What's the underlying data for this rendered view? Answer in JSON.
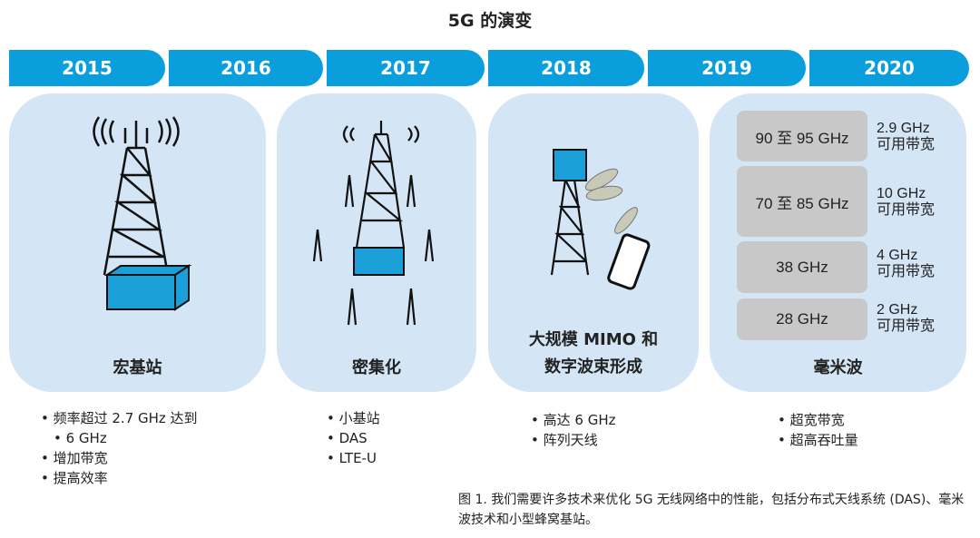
{
  "title": "5G 的演变",
  "years": [
    "2015",
    "2016",
    "2017",
    "2018",
    "2019",
    "2020"
  ],
  "cards": [
    {
      "label": "宏基站",
      "bullets": [
        "频率超过 2.7 GHz 达到",
        "6 GHz",
        "增加带宽",
        "提高效率"
      ]
    },
    {
      "label": "密集化",
      "bullets": [
        "小基站",
        "DAS",
        "LTE-U"
      ]
    },
    {
      "label_line1": "大规模 MIMO 和",
      "label_line2": "数字波束形成",
      "bullets": [
        "高达 6 GHz",
        "阵列天线"
      ]
    },
    {
      "label": "毫米波",
      "bands": [
        {
          "band": "90 至 95 GHz",
          "bw": "2.9 GHz",
          "bw_label": "可用带宽"
        },
        {
          "band": "70 至 85 GHz",
          "bw": "10 GHz",
          "bw_label": "可用带宽"
        },
        {
          "band": "38 GHz",
          "bw": "4 GHz",
          "bw_label": "可用带宽"
        },
        {
          "band": "28 GHz",
          "bw": "2 GHz",
          "bw_label": "可用带宽"
        }
      ],
      "bullets": [
        "超宽带宽",
        "超高吞吐量"
      ]
    }
  ],
  "caption": "图 1. 我们需要许多技术来优化 5G 无线网络中的性能，包括分布式天线系统 (DAS)、毫米波技术和小型蜂窝基站。",
  "colors": {
    "banner": "#0a9fdc",
    "card": "#d4e5f5",
    "box": "#c8c8c8",
    "accent": "#1a9fd8"
  }
}
